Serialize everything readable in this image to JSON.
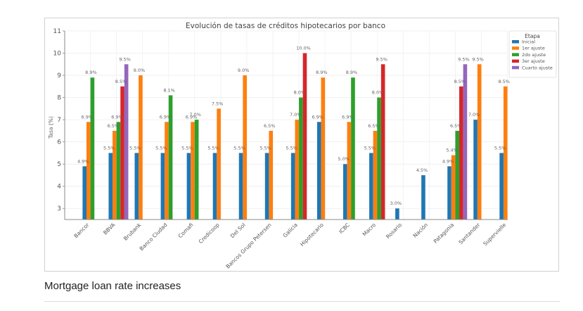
{
  "caption": "Mortgage loan rate increases",
  "chart_data": {
    "type": "bar",
    "title": "Evolución de tasas de créditos hipotecarios por banco",
    "xlabel": "",
    "ylabel": "Tasa (%)",
    "ylim": [
      2.5,
      11
    ],
    "yticks": [
      3,
      4,
      5,
      6,
      7,
      8,
      9,
      10,
      11
    ],
    "grid": true,
    "legend": {
      "title": "Etapa",
      "placement": "top-right"
    },
    "categories": [
      "Bancor",
      "BBVA",
      "Brubank",
      "Banco Ciudad",
      "Comafi",
      "Credicoop",
      "Del Sol",
      "Bancos Grupo Petersen",
      "Galicia",
      "Hipotecario",
      "ICBC",
      "Macro",
      "Rosario",
      "Nación",
      "Patagonia",
      "Santander",
      "Supervielle"
    ],
    "series": [
      {
        "name": "Inicial",
        "color": "#1f77b4",
        "values": [
          4.9,
          5.5,
          5.5,
          5.5,
          5.5,
          5.5,
          5.5,
          5.5,
          5.5,
          6.9,
          5.0,
          5.5,
          3.0,
          4.5,
          4.9,
          7.0,
          5.5
        ]
      },
      {
        "name": "1er ajuste",
        "color": "#ff7f0e",
        "values": [
          6.9,
          6.5,
          9.0,
          6.9,
          6.9,
          7.5,
          9.0,
          6.5,
          7.0,
          8.9,
          6.9,
          6.5,
          null,
          null,
          5.4,
          9.5,
          8.5
        ]
      },
      {
        "name": "2do ajuste",
        "color": "#2ca02c",
        "values": [
          8.9,
          6.9,
          null,
          8.1,
          7.0,
          null,
          null,
          null,
          8.0,
          null,
          8.9,
          8.0,
          null,
          null,
          6.5,
          null,
          null
        ]
      },
      {
        "name": "3er ajuste",
        "color": "#d62728",
        "values": [
          null,
          8.5,
          null,
          null,
          null,
          null,
          null,
          null,
          10.0,
          null,
          null,
          9.5,
          null,
          null,
          8.5,
          null,
          null
        ]
      },
      {
        "name": "Cuarto ajuste",
        "color": "#9467bd",
        "values": [
          null,
          9.5,
          null,
          null,
          null,
          null,
          null,
          null,
          null,
          null,
          null,
          null,
          null,
          null,
          9.5,
          null,
          null
        ]
      }
    ]
  }
}
